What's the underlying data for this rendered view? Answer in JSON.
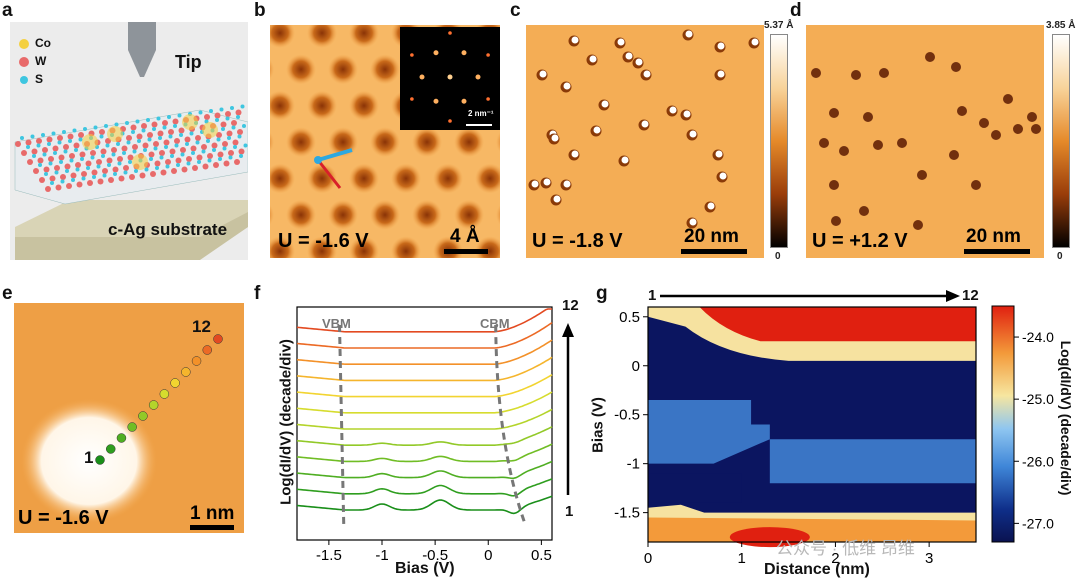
{
  "panels": {
    "a": {
      "letter": "a",
      "legend": [
        "Co",
        "W",
        "S"
      ],
      "tip": "Tip",
      "substrate": "c-Ag substrate",
      "colors": {
        "co": "#f4d03f",
        "w": "#e86a6a",
        "s": "#3ec6e0"
      }
    },
    "b": {
      "letter": "b",
      "voltage": "U = -1.6 V",
      "scale": "4 Å",
      "inset_scale": "2 nm⁻¹"
    },
    "c": {
      "letter": "c",
      "voltage": "U = -1.8 V",
      "scale": "20 nm",
      "cbar_max": "5.37 Å",
      "cbar_min": "0"
    },
    "d": {
      "letter": "d",
      "voltage": "U = +1.2 V",
      "scale": "20 nm",
      "cbar_max": "3.85 Å",
      "cbar_min": "0"
    },
    "e": {
      "letter": "e",
      "voltage": "U = -1.6 V",
      "scale": "1 nm",
      "start": "1",
      "end": "12"
    },
    "f": {
      "letter": "f"
    },
    "g": {
      "letter": "g",
      "arrow_start": "1",
      "arrow_end": "12"
    }
  },
  "chart_data": [
    {
      "type": "line",
      "panel": "f",
      "xlabel": "Bias (V)",
      "ylabel": "Log(dI/dV) (decade/div)",
      "xlim": [
        -1.8,
        0.6
      ],
      "xticks": [
        "-1.5",
        "-1",
        "-0.5",
        "0",
        "0.5"
      ],
      "markers": {
        "vbm": "VBM",
        "cbm": "CBM"
      },
      "series_labels": {
        "first": "1",
        "last": "12"
      },
      "n_series": 12,
      "series_colors": [
        "#1a8f1a",
        "#2f9e1f",
        "#4fae22",
        "#70bd25",
        "#92c928",
        "#b4d42b",
        "#d6dc2e",
        "#f2d430",
        "#f5b52d",
        "#f39129",
        "#ec6a25",
        "#e34a21"
      ]
    },
    {
      "type": "heatmap",
      "panel": "g",
      "xlabel": "Distance (nm)",
      "ylabel": "Bias (V)",
      "xlim": [
        0,
        3.5
      ],
      "ylim": [
        -1.8,
        0.6
      ],
      "xticks": [
        "0",
        "1",
        "2",
        "3"
      ],
      "yticks": [
        "0.5",
        "0",
        "-0.5",
        "-1",
        "-1.5"
      ],
      "colorbar_label": "Log(dI/dV) (decade/div)",
      "colorbar_ticks": [
        "-24.0",
        "-25.0",
        "-26.0",
        "-27.0"
      ],
      "colorbar_range": [
        -27.3,
        -23.5
      ]
    }
  ],
  "watermark": "公众号 · 低维 昂维"
}
